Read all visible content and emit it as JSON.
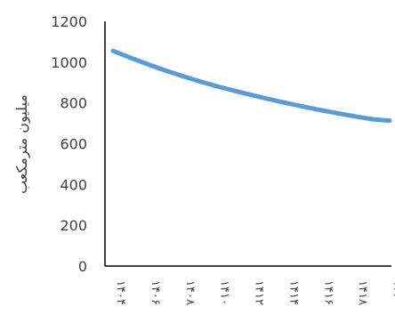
{
  "chart_data": {
    "type": "line",
    "ylabel": "میلیون مترمکعب",
    "ylim": [
      0,
      1200
    ],
    "y_ticks": [
      "0",
      "200",
      "400",
      "600",
      "800",
      "1000",
      "1200"
    ],
    "categories": [
      "۱۴۰۴",
      "۱۴۰۶",
      "۱۴۰۸",
      "۱۴۱۰",
      "۱۴۱۲",
      "۱۴۱۴",
      "۱۴۱۶",
      "۱۴۱۸",
      "۱۴۲۰"
    ],
    "x": [
      "۱۴۰۴",
      "۱۴۰۵",
      "۱۴۰۶",
      "۱۴۰۷",
      "۱۴۰۸",
      "۱۴۰۹",
      "۱۴۱۰",
      "۱۴۱۱",
      "۱۴۱۲",
      "۱۴۱۳",
      "۱۴۱۴",
      "۱۴۱۵",
      "۱۴۱۶",
      "۱۴۱۷",
      "۱۴۱۸",
      "۱۴۱۹",
      "۱۴۲۰"
    ],
    "series": [
      {
        "values": [
          1055,
          1022,
          990,
          960,
          932,
          906,
          882,
          860,
          839,
          819,
          800,
          782,
          765,
          749,
          734,
          720,
          713
        ],
        "color": "#5b9bd5"
      }
    ],
    "grid": false,
    "legend": "none"
  }
}
